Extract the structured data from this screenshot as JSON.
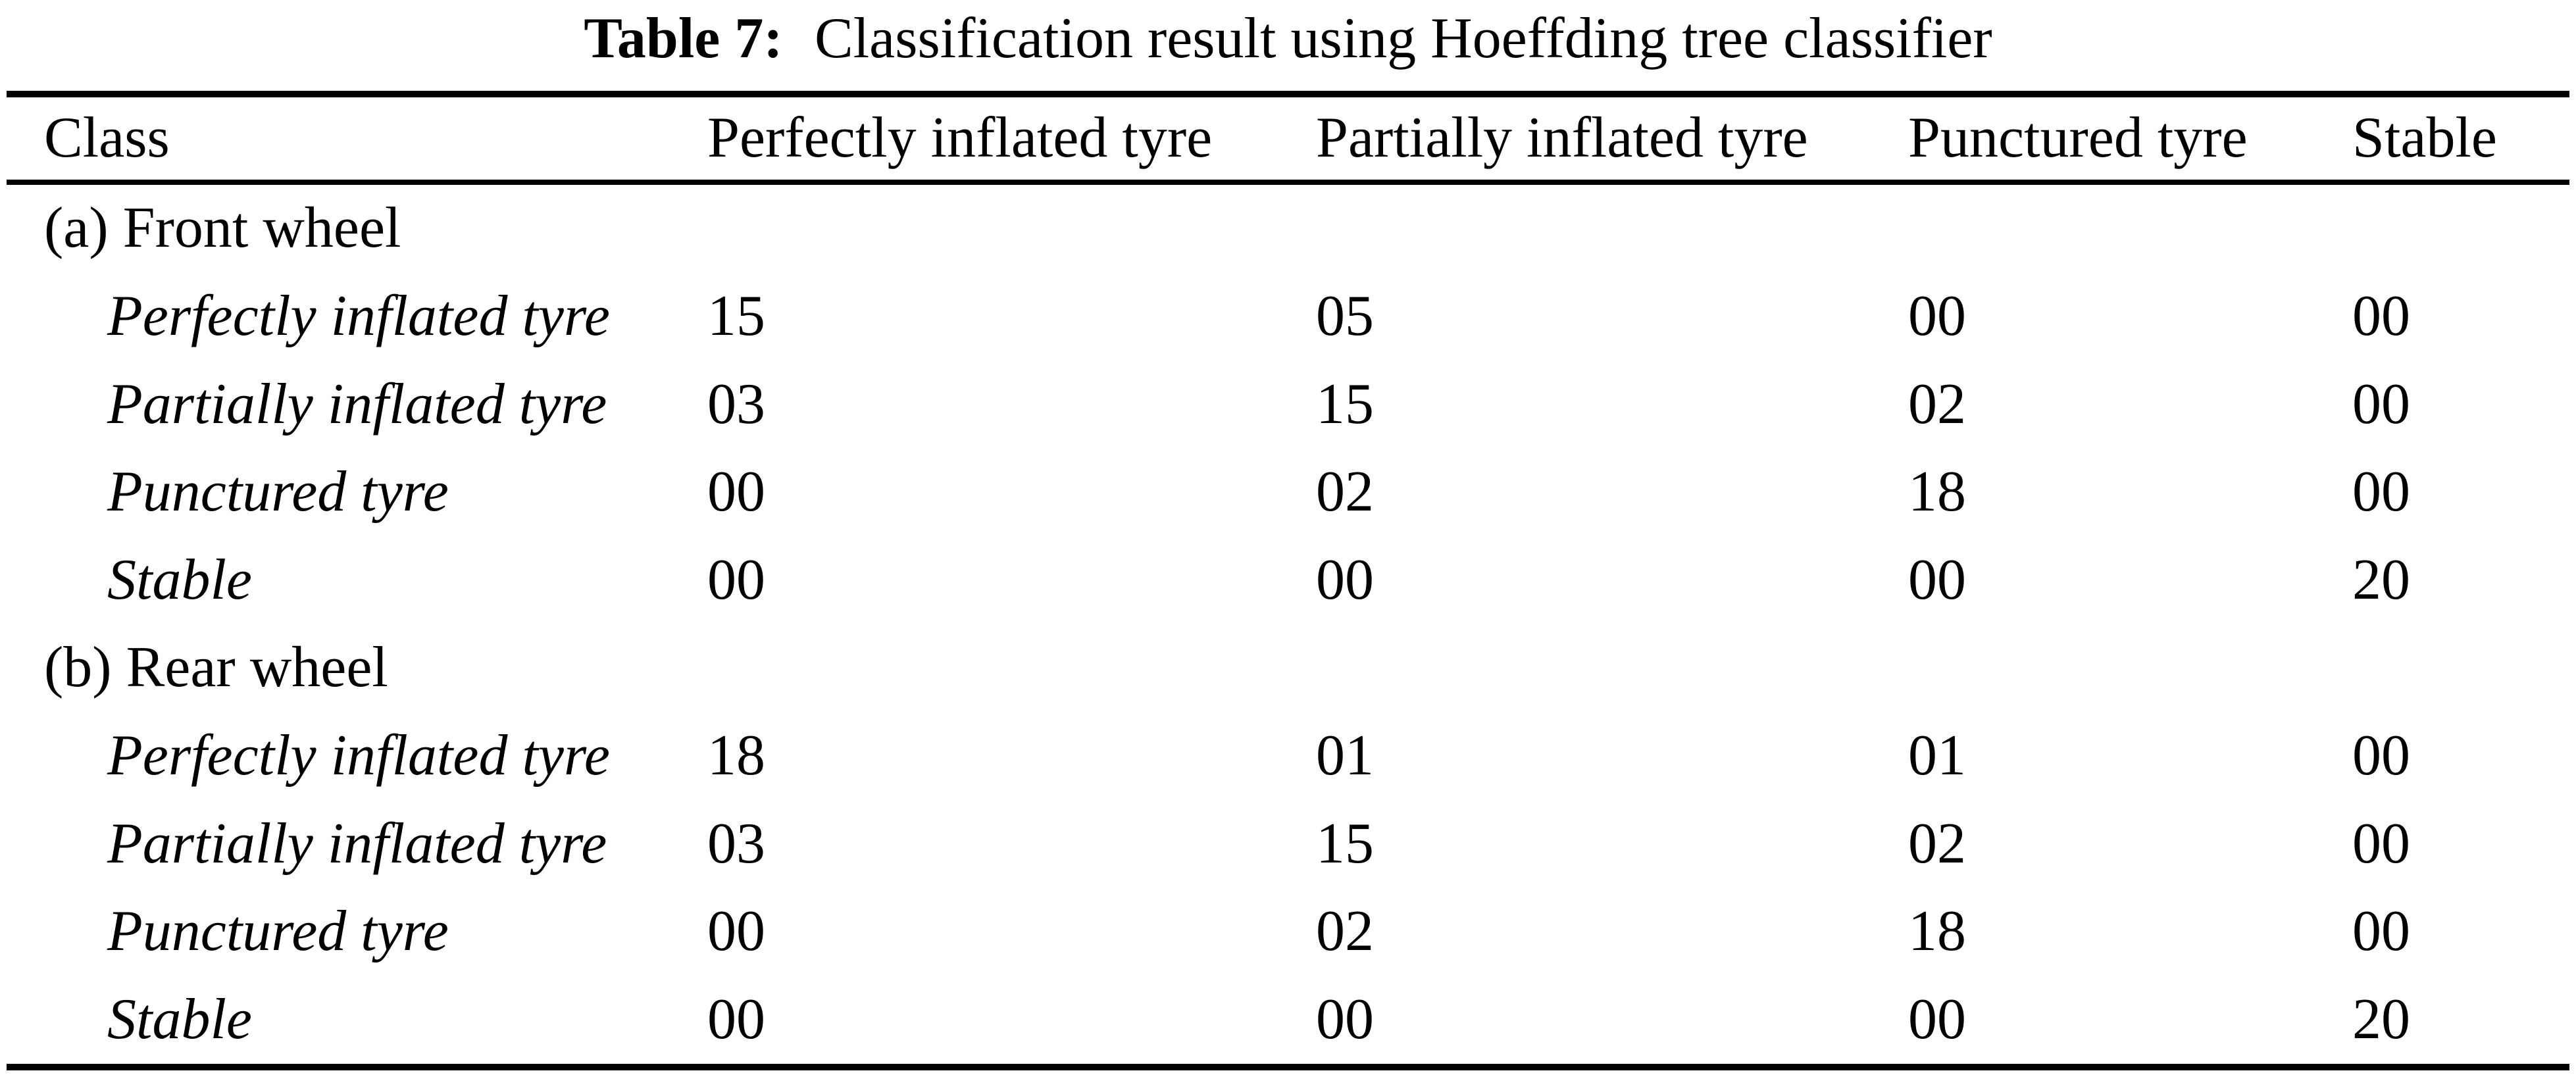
{
  "caption": {
    "label": "Table 7:",
    "text": "Classification result using Hoeffding tree classifier"
  },
  "table": {
    "columns": [
      "Class",
      "Perfectly inflated tyre",
      "Partially inflated tyre",
      "Punctured tyre",
      "Stable"
    ],
    "sections": [
      {
        "header": "(a) Front wheel",
        "rows": [
          {
            "label": "Perfectly inflated tyre",
            "values": [
              "15",
              "05",
              "00",
              "00"
            ]
          },
          {
            "label": "Partially inflated tyre",
            "values": [
              "03",
              "15",
              "02",
              "00"
            ]
          },
          {
            "label": "Punctured tyre",
            "values": [
              "00",
              "02",
              "18",
              "00"
            ]
          },
          {
            "label": "Stable",
            "values": [
              "00",
              "00",
              "00",
              "20"
            ]
          }
        ]
      },
      {
        "header": "(b) Rear wheel",
        "rows": [
          {
            "label": "Perfectly inflated tyre",
            "values": [
              "18",
              "01",
              "01",
              "00"
            ]
          },
          {
            "label": "Partially inflated tyre",
            "values": [
              "03",
              "15",
              "02",
              "00"
            ]
          },
          {
            "label": "Punctured tyre",
            "values": [
              "00",
              "02",
              "18",
              "00"
            ]
          },
          {
            "label": "Stable",
            "values": [
              "00",
              "00",
              "00",
              "20"
            ]
          }
        ]
      }
    ]
  },
  "chart_data": {
    "type": "table",
    "title": "Table 7: Classification result using Hoeffding tree classifier",
    "columns": [
      "Class",
      "Perfectly inflated tyre",
      "Partially inflated tyre",
      "Punctured tyre",
      "Stable"
    ],
    "groups": [
      {
        "name": "(a) Front wheel",
        "rows": [
          [
            "Perfectly inflated tyre",
            15,
            5,
            0,
            0
          ],
          [
            "Partially inflated tyre",
            3,
            15,
            2,
            0
          ],
          [
            "Punctured tyre",
            0,
            2,
            18,
            0
          ],
          [
            "Stable",
            0,
            0,
            0,
            20
          ]
        ]
      },
      {
        "name": "(b) Rear wheel",
        "rows": [
          [
            "Perfectly inflated tyre",
            18,
            1,
            1,
            0
          ],
          [
            "Partially inflated tyre",
            3,
            15,
            2,
            0
          ],
          [
            "Punctured tyre",
            0,
            2,
            18,
            0
          ],
          [
            "Stable",
            0,
            0,
            0,
            20
          ]
        ]
      }
    ]
  }
}
